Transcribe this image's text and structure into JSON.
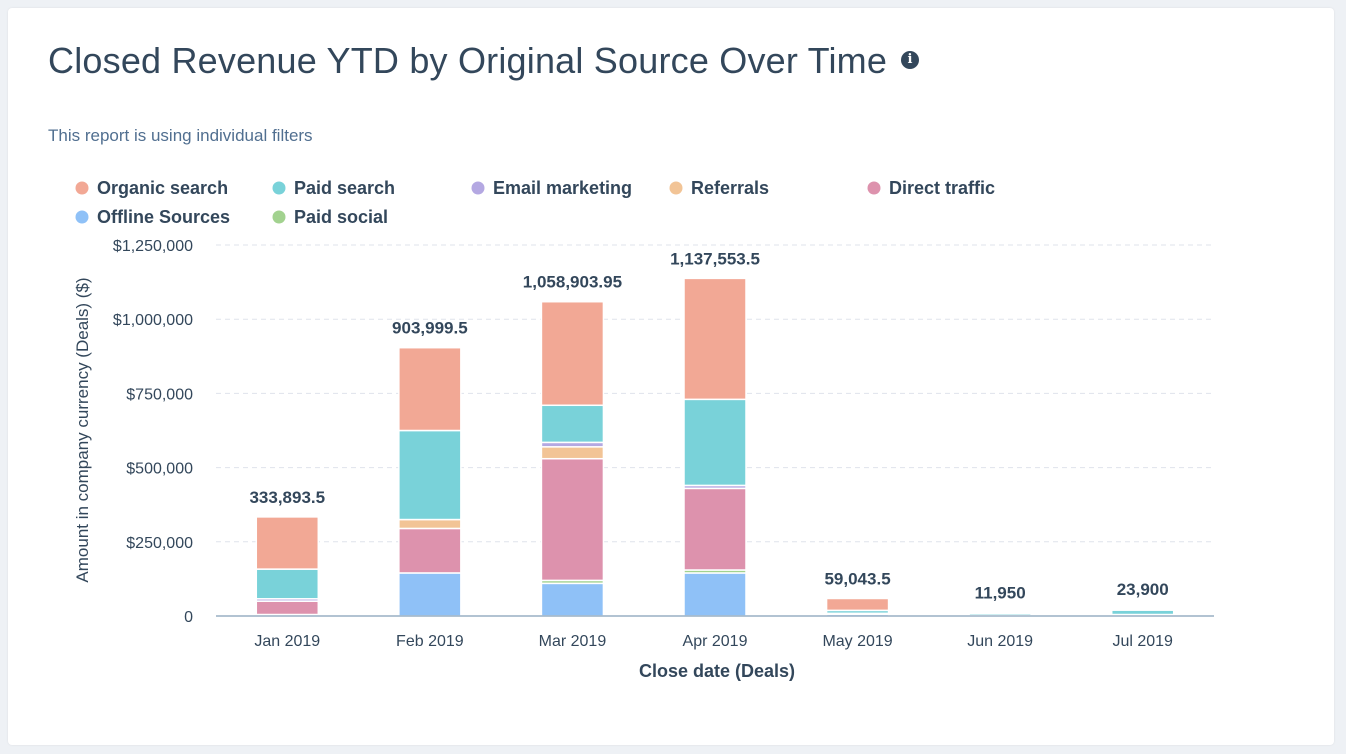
{
  "header": {
    "title": "Closed Revenue YTD by Original Source Over Time",
    "info_icon": "info-icon",
    "subtitle": "This report is using individual filters"
  },
  "chart_data": {
    "type": "bar",
    "stacked": true,
    "title": "Closed Revenue YTD by Original Source Over Time",
    "xlabel": "Close date (Deals)",
    "ylabel": "Amount in company currency (Deals) ($)",
    "ylim": [
      0,
      1250000
    ],
    "yticks": [
      0,
      250000,
      500000,
      750000,
      1000000,
      1250000
    ],
    "ytick_labels": [
      "0",
      "$250,000",
      "$500,000",
      "$750,000",
      "$1,000,000",
      "$1,250,000"
    ],
    "grid": true,
    "legend_position": "top",
    "categories": [
      "Jan 2019",
      "Feb 2019",
      "Mar 2019",
      "Apr 2019",
      "May 2019",
      "Jun 2019",
      "Jul 2019"
    ],
    "totals": [
      333893.5,
      903999.5,
      1058903.95,
      1137553.5,
      59043.5,
      11950,
      23900
    ],
    "total_labels": [
      "333,893.5",
      "903,999.5",
      "1,058,903.95",
      "1,137,553.5",
      "59,043.5",
      "11,950",
      "23,900"
    ],
    "series": [
      {
        "name": "Offline Sources",
        "color": "#8fc1f7",
        "values": [
          5000,
          145000,
          110000,
          145000,
          6000,
          3000,
          5000
        ]
      },
      {
        "name": "Paid social",
        "color": "#a2d28f",
        "values": [
          0,
          0,
          10000,
          10000,
          3000,
          0,
          0
        ]
      },
      {
        "name": "Direct traffic",
        "color": "#dd92ad",
        "values": [
          45000,
          150000,
          410000,
          275000,
          0,
          0,
          0
        ]
      },
      {
        "name": "Referrals",
        "color": "#f2c496",
        "values": [
          0,
          30000,
          40000,
          0,
          0,
          0,
          0
        ]
      },
      {
        "name": "Email marketing",
        "color": "#b4a8e2",
        "values": [
          8000,
          0,
          15000,
          10000,
          0,
          0,
          0
        ]
      },
      {
        "name": "Paid search",
        "color": "#79d2d9",
        "values": [
          100000,
          300000,
          125000,
          290000,
          10000,
          7950,
          14900
        ]
      },
      {
        "name": "Organic search",
        "color": "#f2a895",
        "values": [
          175893.5,
          278999.5,
          348903.95,
          407553.5,
          40043.5,
          1000,
          4000
        ]
      }
    ],
    "legend": [
      {
        "name": "Organic search",
        "color": "#f2a895"
      },
      {
        "name": "Paid search",
        "color": "#79d2d9"
      },
      {
        "name": "Email marketing",
        "color": "#b4a8e2"
      },
      {
        "name": "Referrals",
        "color": "#f2c496"
      },
      {
        "name": "Direct traffic",
        "color": "#dd92ad"
      },
      {
        "name": "Offline Sources",
        "color": "#8fc1f7"
      },
      {
        "name": "Paid social",
        "color": "#a2d28f"
      }
    ]
  }
}
